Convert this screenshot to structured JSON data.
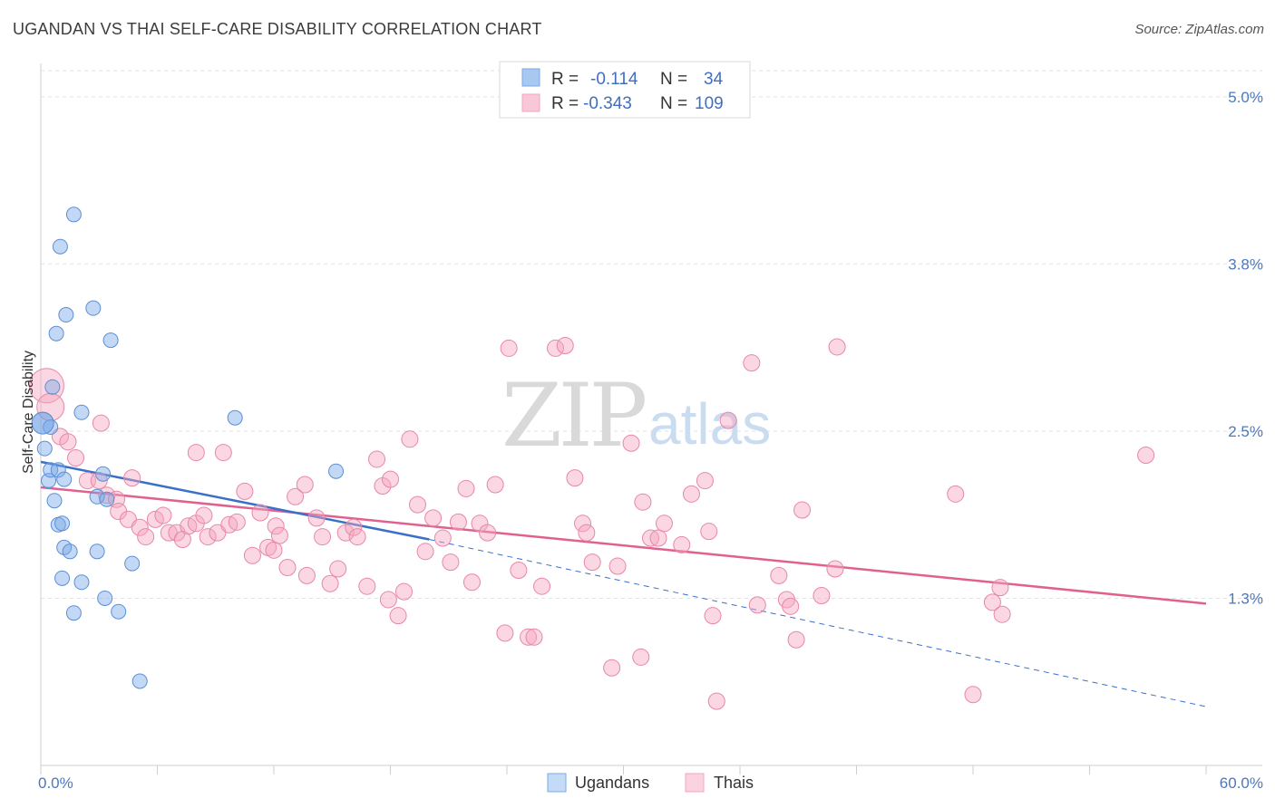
{
  "header": {
    "title": "UGANDAN VS THAI SELF-CARE DISABILITY CORRELATION CHART",
    "source": "Source: ZipAtlas.com"
  },
  "watermark": {
    "zip": "ZIP",
    "atlas": "atlas"
  },
  "legend": {
    "rows": [
      {
        "r_label": "R =",
        "r_value": "-0.114",
        "n_label": "N =",
        "n_value": "34",
        "color": "#a9c8f0"
      },
      {
        "r_label": "R =",
        "r_value": "-0.343",
        "n_label": "N =",
        "n_value": "109",
        "color": "#f6b8cc"
      }
    ]
  },
  "bottom_legend": {
    "ugandans": "Ugandans",
    "thais": "Thais"
  },
  "chart_data": {
    "type": "scatter",
    "ylabel": "Self-Care Disability",
    "xlim": [
      0,
      60
    ],
    "ylim": [
      0,
      5.25
    ],
    "x_tick_labels": [
      {
        "value": 0,
        "label": "0.0%"
      },
      {
        "value": 60,
        "label": "60.0%"
      }
    ],
    "y_ticks": [
      {
        "value": 1.25,
        "label": "1.3%"
      },
      {
        "value": 2.5,
        "label": "2.5%"
      },
      {
        "value": 3.75,
        "label": "3.8%"
      },
      {
        "value": 5.0,
        "label": "5.0%"
      }
    ],
    "grid": true,
    "legend_position": "top-center",
    "series": [
      {
        "name": "Ugandans",
        "color": "#7aa8e6",
        "stroke": "#5b8fd6",
        "trend": {
          "x0": 0,
          "y0": 2.27,
          "x1": 20,
          "y1": 1.69,
          "dash_to_x": 60,
          "dash_to_y": 0.44,
          "color": "#3a70c8"
        },
        "points": [
          [
            0.1,
            2.56
          ],
          [
            0.2,
            2.37
          ],
          [
            0.4,
            2.13
          ],
          [
            0.5,
            2.53
          ],
          [
            0.6,
            2.83
          ],
          [
            0.5,
            2.21
          ],
          [
            0.7,
            1.98
          ],
          [
            0.9,
            2.21
          ],
          [
            0.8,
            3.23
          ],
          [
            0.9,
            1.8
          ],
          [
            1.1,
            1.81
          ],
          [
            1.2,
            1.63
          ],
          [
            1.2,
            2.14
          ],
          [
            1.3,
            3.37
          ],
          [
            1.1,
            1.4
          ],
          [
            1.7,
            4.12
          ],
          [
            1.5,
            1.6
          ],
          [
            2.1,
            2.64
          ],
          [
            1.0,
            3.88
          ],
          [
            1.7,
            1.14
          ],
          [
            2.1,
            1.37
          ],
          [
            2.7,
            3.42
          ],
          [
            2.9,
            2.01
          ],
          [
            2.9,
            1.6
          ],
          [
            3.2,
            2.18
          ],
          [
            3.4,
            1.99
          ],
          [
            3.3,
            1.25
          ],
          [
            3.6,
            3.18
          ],
          [
            4.0,
            1.15
          ],
          [
            4.7,
            1.51
          ],
          [
            5.1,
            0.63
          ],
          [
            10.0,
            2.6
          ],
          [
            15.2,
            2.2
          ],
          [
            0.1,
            2.56
          ]
        ]
      },
      {
        "name": "Thais",
        "color": "#f4a6bf",
        "stroke": "#e887a7",
        "trend": {
          "x0": 0,
          "y0": 2.08,
          "x1": 60,
          "y1": 1.21,
          "color": "#e0608f"
        },
        "points": [
          [
            0.3,
            2.84
          ],
          [
            0.5,
            2.68
          ],
          [
            1.0,
            2.46
          ],
          [
            1.4,
            2.42
          ],
          [
            1.8,
            2.3
          ],
          [
            2.4,
            2.13
          ],
          [
            3.0,
            2.13
          ],
          [
            3.1,
            2.56
          ],
          [
            3.4,
            2.02
          ],
          [
            3.9,
            1.99
          ],
          [
            4.0,
            1.9
          ],
          [
            4.5,
            1.84
          ],
          [
            4.7,
            2.15
          ],
          [
            5.1,
            1.78
          ],
          [
            5.4,
            1.71
          ],
          [
            5.9,
            1.84
          ],
          [
            6.3,
            1.87
          ],
          [
            6.6,
            1.74
          ],
          [
            7.0,
            1.74
          ],
          [
            7.3,
            1.69
          ],
          [
            7.6,
            1.79
          ],
          [
            8.0,
            1.81
          ],
          [
            8.0,
            2.34
          ],
          [
            8.4,
            1.87
          ],
          [
            8.6,
            1.71
          ],
          [
            9.1,
            1.74
          ],
          [
            9.4,
            2.34
          ],
          [
            9.7,
            1.8
          ],
          [
            10.1,
            1.82
          ],
          [
            10.5,
            2.05
          ],
          [
            10.9,
            1.57
          ],
          [
            11.3,
            1.89
          ],
          [
            11.7,
            1.63
          ],
          [
            12.0,
            1.61
          ],
          [
            12.1,
            1.79
          ],
          [
            12.3,
            1.72
          ],
          [
            12.7,
            1.48
          ],
          [
            13.1,
            2.01
          ],
          [
            13.6,
            2.1
          ],
          [
            13.7,
            1.42
          ],
          [
            14.2,
            1.85
          ],
          [
            14.5,
            1.71
          ],
          [
            14.9,
            1.36
          ],
          [
            15.3,
            1.47
          ],
          [
            15.7,
            1.74
          ],
          [
            16.1,
            1.78
          ],
          [
            16.3,
            1.71
          ],
          [
            16.8,
            1.34
          ],
          [
            17.3,
            2.29
          ],
          [
            17.6,
            2.09
          ],
          [
            17.9,
            1.24
          ],
          [
            18.0,
            2.14
          ],
          [
            18.4,
            1.12
          ],
          [
            18.7,
            1.3
          ],
          [
            19.0,
            2.44
          ],
          [
            19.4,
            1.95
          ],
          [
            19.8,
            1.6
          ],
          [
            20.2,
            1.85
          ],
          [
            20.7,
            1.7
          ],
          [
            21.1,
            1.52
          ],
          [
            21.5,
            1.82
          ],
          [
            21.9,
            2.07
          ],
          [
            22.2,
            1.37
          ],
          [
            22.6,
            1.81
          ],
          [
            23.0,
            1.74
          ],
          [
            23.4,
            2.1
          ],
          [
            23.9,
            0.99
          ],
          [
            24.1,
            3.12
          ],
          [
            24.6,
            1.46
          ],
          [
            25.1,
            0.96
          ],
          [
            25.4,
            0.96
          ],
          [
            25.8,
            1.34
          ],
          [
            26.5,
            3.12
          ],
          [
            27.0,
            3.14
          ],
          [
            27.5,
            2.15
          ],
          [
            27.9,
            1.81
          ],
          [
            28.1,
            1.74
          ],
          [
            28.4,
            1.52
          ],
          [
            29.4,
            0.73
          ],
          [
            29.7,
            1.49
          ],
          [
            30.4,
            2.41
          ],
          [
            30.9,
            0.81
          ],
          [
            31.0,
            1.97
          ],
          [
            31.4,
            1.7
          ],
          [
            31.8,
            1.7
          ],
          [
            32.1,
            1.81
          ],
          [
            33.0,
            1.65
          ],
          [
            33.5,
            2.03
          ],
          [
            34.2,
            2.13
          ],
          [
            34.4,
            1.75
          ],
          [
            34.6,
            1.12
          ],
          [
            34.8,
            0.48
          ],
          [
            35.4,
            2.58
          ],
          [
            36.6,
            3.01
          ],
          [
            36.9,
            1.2
          ],
          [
            38.0,
            1.42
          ],
          [
            38.4,
            1.24
          ],
          [
            38.6,
            1.19
          ],
          [
            38.9,
            0.94
          ],
          [
            39.2,
            1.91
          ],
          [
            40.2,
            1.27
          ],
          [
            40.9,
            1.47
          ],
          [
            41.0,
            3.13
          ],
          [
            48.0,
            0.53
          ],
          [
            49.0,
            1.22
          ],
          [
            49.4,
            1.33
          ],
          [
            49.5,
            1.13
          ],
          [
            56.9,
            2.32
          ],
          [
            47.1,
            2.03
          ]
        ]
      }
    ]
  }
}
